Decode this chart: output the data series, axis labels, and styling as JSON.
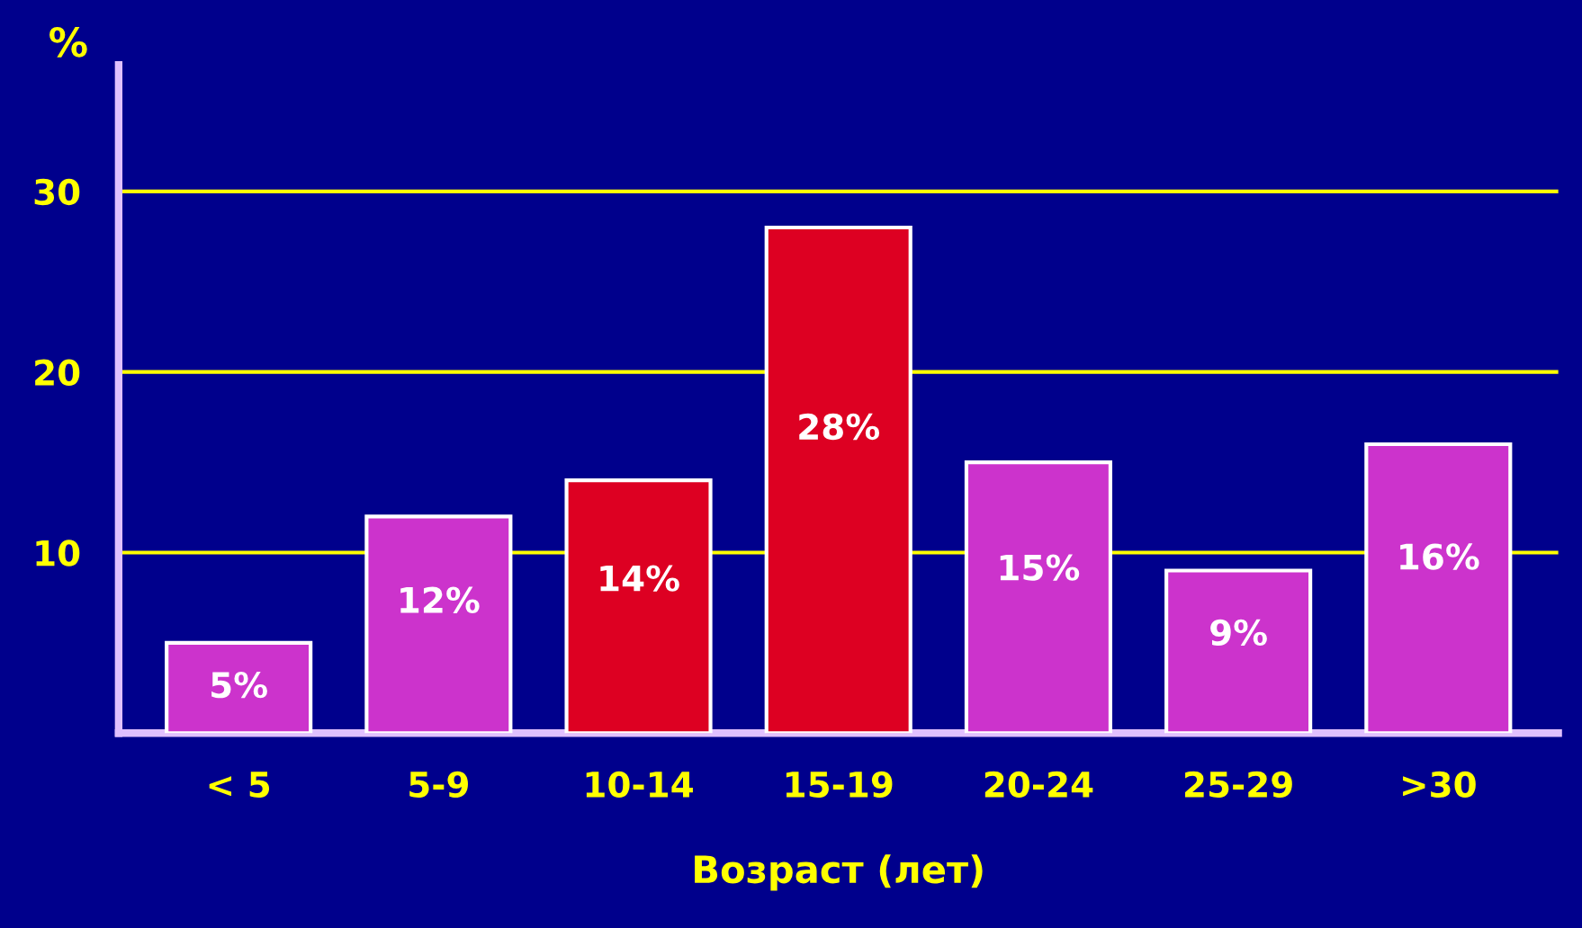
{
  "chart_data": {
    "type": "bar",
    "xlabel": "Возраст (лет)",
    "ylabel": "%",
    "categories": [
      "< 5",
      "5-9",
      "10-14",
      "15-19",
      "20-24",
      "25-29",
      ">30"
    ],
    "values": [
      5,
      12,
      14,
      28,
      15,
      9,
      16
    ],
    "colors": [
      "#cc33cc",
      "#cc33cc",
      "#dd0022",
      "#dd0022",
      "#cc33cc",
      "#cc33cc",
      "#cc33cc"
    ],
    "value_labels": [
      "5%",
      "12%",
      "14%",
      "28%",
      "15%",
      "9%",
      "16%"
    ],
    "ylim": [
      0,
      37
    ],
    "yticks": [
      10,
      20,
      30
    ],
    "grid": "y",
    "legend": false
  }
}
